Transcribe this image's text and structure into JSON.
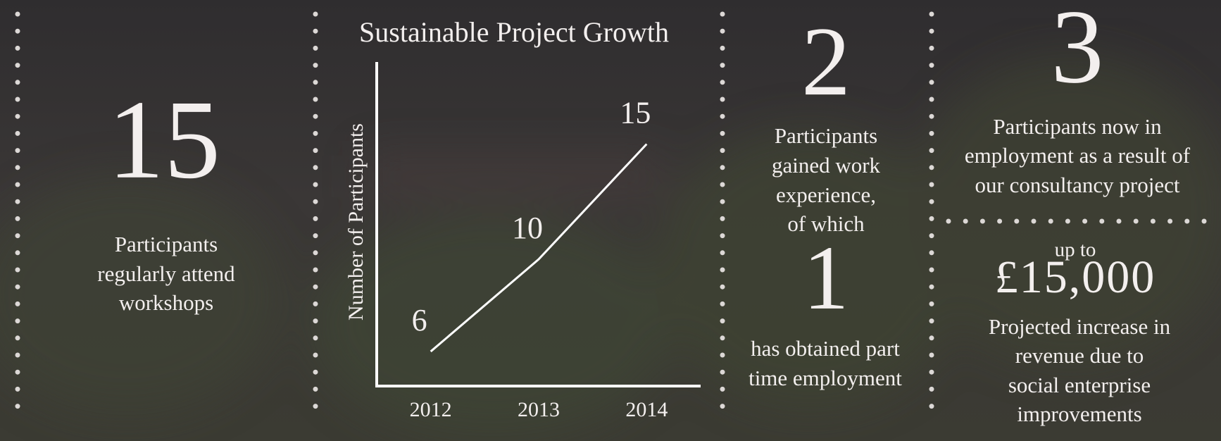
{
  "workshops": {
    "number": 15,
    "lines": [
      "Participants",
      "regularly attend",
      "workshops"
    ]
  },
  "chart_data": {
    "type": "line",
    "title": "Sustainable Project Growth",
    "y_label": "Number of Participants",
    "categories": [
      "2012",
      "2013",
      "2014"
    ],
    "values": [
      6,
      10,
      15
    ],
    "color": "#ffffff",
    "ylim": [
      4.5,
      18.5
    ]
  },
  "experience": {
    "number": 2,
    "lines": [
      "Participants",
      "gained work",
      "experience,",
      "of which"
    ],
    "sub_number": 1,
    "sub_lines": [
      "has obtained part",
      "time employment"
    ]
  },
  "employment": {
    "number": 3,
    "lines": [
      "Participants now in",
      "employment as a result of",
      "our consultancy project"
    ]
  },
  "revenue": {
    "prefix": "up to",
    "amount": "£15,000",
    "lines": [
      "Projected increase in",
      "revenue due to",
      "social enterprise",
      "improvements"
    ]
  }
}
